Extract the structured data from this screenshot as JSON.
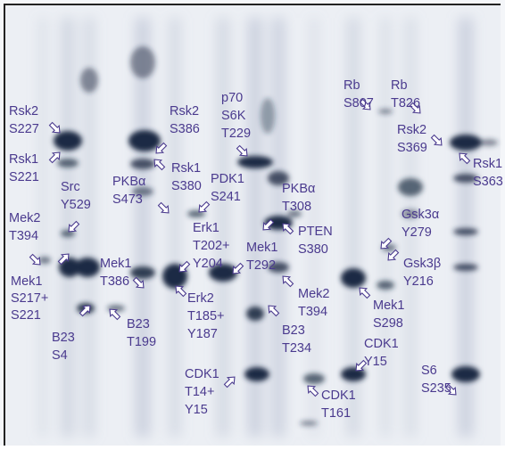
{
  "labels": [
    [
      "Rsk2",
      "S227"
    ],
    [
      "Rsk1",
      "S221"
    ],
    [
      "Src",
      "Y529"
    ],
    [
      "Mek2",
      "T394"
    ],
    [
      "Mek1",
      "S217+",
      "S221"
    ],
    [
      "B23",
      "S4"
    ],
    [
      "B23",
      "T199"
    ],
    [
      "Mek1",
      "T386"
    ],
    [
      "PKBα",
      "S473"
    ],
    [
      "Rsk2",
      "S386"
    ],
    [
      "Rsk1",
      "S380"
    ],
    [
      "p70",
      "S6K",
      "T229"
    ],
    [
      "PDK1",
      "S241"
    ],
    [
      "Erk1",
      "T202+",
      "Y204"
    ],
    [
      "Erk2",
      "T185+",
      "Y187"
    ],
    [
      "Mek1",
      "T292"
    ],
    [
      "PKBα",
      "T308"
    ],
    [
      "PTEN",
      "S380"
    ],
    [
      "Mek2",
      "T394"
    ],
    [
      "B23",
      "T234"
    ],
    [
      "CDK1",
      "T14+",
      "Y15"
    ],
    [
      "CDK1",
      "T161"
    ],
    [
      "Rb",
      "S807"
    ],
    [
      "Rb",
      "T826"
    ],
    [
      "Rsk2",
      "S369"
    ],
    [
      "Rsk1",
      "S363"
    ],
    [
      "Gsk3α",
      "Y279"
    ],
    [
      "Gsk3β",
      "Y216"
    ],
    [
      "Mek1",
      "S298"
    ],
    [
      "CDK1",
      "Y15"
    ],
    [
      "S6",
      "S235"
    ]
  ]
}
